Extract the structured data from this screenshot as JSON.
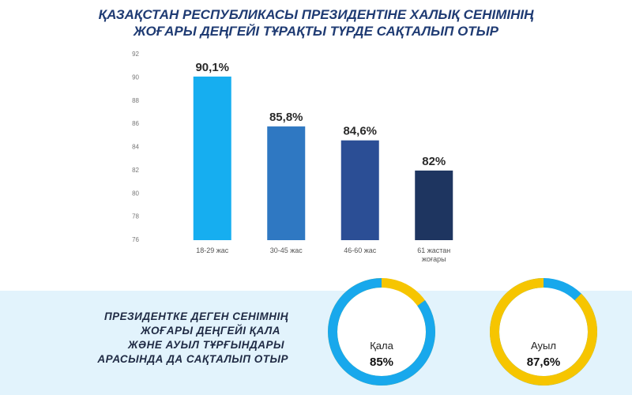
{
  "header": {
    "title_lines": [
      "ҚАЗАҚСТАН РЕСПУБЛИКАСЫ ПРЕЗИДЕНТІНЕ ХАЛЫҚ СЕНІМІНІҢ",
      "ЖОҒАРЫ ДЕҢГЕЙІ ТҰРАҚТЫ ТҮРДЕ САҚТАЛЫП ОТЫР"
    ]
  },
  "note": {
    "lines": [
      "ПРЕЗИДЕНТКЕ ДЕГЕН СЕНІМНІҢ",
      "ЖОҒАРЫ ДЕҢГЕЙІ ҚАЛА",
      "ЖӘНЕ АУЫЛ ТҰРҒЫНДАРЫ",
      "АРАСЫНДА ДА САҚТАЛЫП ОТЫР"
    ]
  },
  "chart_data": [
    {
      "type": "bar",
      "categories": [
        "18-29 жас",
        "30-45 жас",
        "46-60 жас",
        "61 жастан жоғары"
      ],
      "values": [
        90.1,
        85.8,
        84.6,
        82
      ],
      "value_labels": [
        "90,1%",
        "85,8%",
        "84,6%",
        "82%"
      ],
      "colors": [
        "#16aef0",
        "#2f78c2",
        "#2b4e95",
        "#1e3560"
      ],
      "ylim": [
        76,
        92
      ],
      "yticks": [
        76,
        78,
        80,
        82,
        84,
        86,
        88,
        90,
        92
      ],
      "grid": false
    },
    {
      "type": "donut",
      "categories": [
        "Қала"
      ],
      "values": [
        85
      ],
      "value_labels": [
        "85%"
      ],
      "color": "#18a8ec",
      "track_color": "#f6c500"
    },
    {
      "type": "donut",
      "categories": [
        "Ауыл"
      ],
      "values": [
        87.6
      ],
      "value_labels": [
        "87,6%"
      ],
      "color": "#f6c500",
      "track_color": "#18a8ec"
    }
  ]
}
